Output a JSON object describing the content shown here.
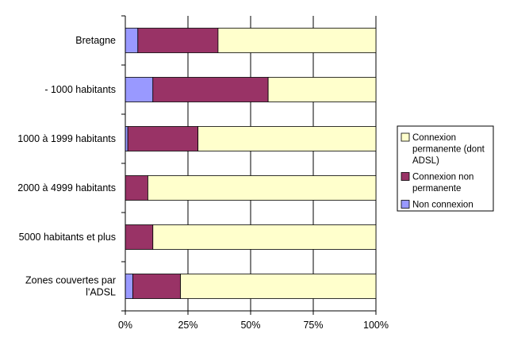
{
  "chart_data": {
    "type": "bar",
    "orientation": "horizontal",
    "stacked": "percent",
    "categories": [
      [
        "Bretagne"
      ],
      [
        "- 1000 habitants"
      ],
      [
        "1000 à 1999 habitants"
      ],
      [
        "2000 à 4999 habitants"
      ],
      [
        "5000 habitants et plus"
      ],
      [
        "Zones couvertes par",
        "l'ADSL"
      ]
    ],
    "series": [
      {
        "name": "Non connexion",
        "color": "#9999ff",
        "values": [
          5,
          11,
          1,
          0,
          0,
          3
        ]
      },
      {
        "name": "Connexion non permanente",
        "color": "#993366",
        "values": [
          32,
          46,
          28,
          9,
          11,
          19
        ]
      },
      {
        "name": "Connexion permanente (dont ADSL)",
        "color": "#ffffcc",
        "values": [
          63,
          43,
          71,
          91,
          89,
          78
        ]
      }
    ],
    "legend_lines": [
      {
        "series": 2,
        "lines": [
          "Connexion",
          "permanente (dont",
          "ADSL)"
        ]
      },
      {
        "series": 1,
        "lines": [
          "Connexion non",
          "permanente"
        ]
      },
      {
        "series": 0,
        "lines": [
          "Non connexion"
        ]
      }
    ],
    "x_ticks": [
      "0%",
      "25%",
      "50%",
      "75%",
      "100%"
    ],
    "xlim": [
      0,
      100
    ],
    "grid": "vertical",
    "legend_position": "right",
    "title": "",
    "xlabel": "",
    "ylabel": ""
  }
}
